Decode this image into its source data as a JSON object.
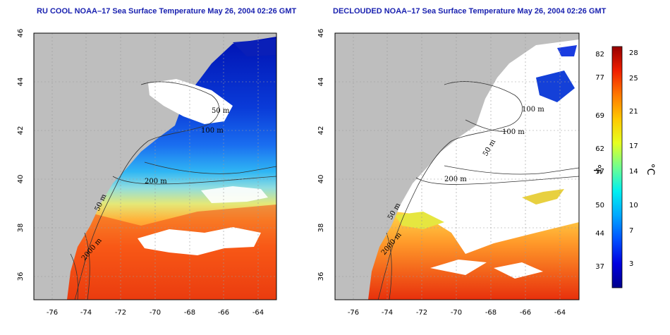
{
  "titles": {
    "left": "RU COOL NOAA–17 Sea Surface Temperature May 26, 2004 02:26 GMT",
    "right": "DECLOUDED NOAA–17 Sea Surface Temperature May 26, 2004 02:26 GMT"
  },
  "map": {
    "lon_ticks": [
      "-76",
      "-74",
      "-72",
      "-70",
      "-68",
      "-66",
      "-64"
    ],
    "lat_ticks": [
      "46",
      "44",
      "42",
      "40",
      "38",
      "36"
    ],
    "contour_labels": {
      "left": [
        "100 m",
        "50 m",
        "200 m",
        "50 m",
        "2000 m"
      ],
      "right": [
        "100 m",
        "100 m",
        "50 m",
        "200 m",
        "50 m",
        "2000 m"
      ]
    },
    "colors": {
      "land": "#bebebe",
      "cloud": "#ffffff",
      "grid": "#9a9a9a"
    }
  },
  "colorbar": {
    "fahrenheit_ticks": [
      "82",
      "77",
      "69",
      "62",
      "57",
      "50",
      "44",
      "37"
    ],
    "celsius_ticks": [
      "28",
      "25",
      "21",
      "17",
      "14",
      "10",
      "7",
      "3"
    ],
    "fahrenheit_unit": "°F",
    "celsius_unit": "°C",
    "gradient": [
      "#000096",
      "#0000e6",
      "#005aff",
      "#00b4ff",
      "#00ffe6",
      "#a0ff60",
      "#ffff00",
      "#ffb400",
      "#ff6400",
      "#e61e00",
      "#960000"
    ]
  }
}
